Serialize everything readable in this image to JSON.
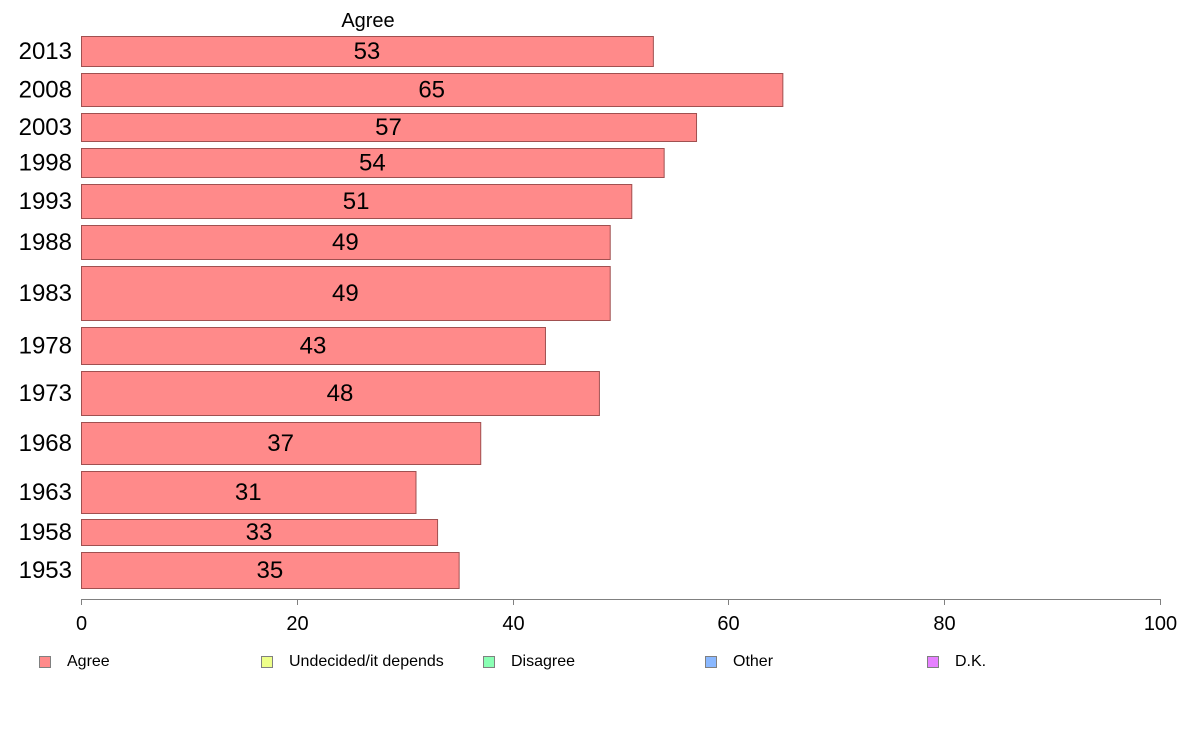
{
  "chart_data": {
    "type": "bar",
    "orientation": "horizontal",
    "title": "Agree",
    "categories": [
      "2013",
      "2008",
      "2003",
      "1998",
      "1993",
      "1988",
      "1983",
      "1978",
      "1973",
      "1968",
      "1963",
      "1958",
      "1953"
    ],
    "series": [
      {
        "name": "Agree",
        "values": [
          53,
          65,
          57,
          54,
          51,
          49,
          49,
          43,
          48,
          37,
          31,
          33,
          35
        ]
      }
    ],
    "data_labels": [
      "53",
      "65",
      "57",
      "54",
      "51",
      "49",
      "49",
      "43",
      "48",
      "37",
      "31",
      "33",
      "35"
    ],
    "xlim": [
      0,
      100
    ],
    "xticks": [
      0,
      20,
      40,
      60,
      80,
      100
    ],
    "xtick_labels": [
      "0",
      "20",
      "40",
      "60",
      "80",
      "100"
    ],
    "grid": false,
    "legend_position": "bottom",
    "legend": [
      {
        "name": "Agree",
        "color": "#ff8a8a"
      },
      {
        "name": "Undecided/it depends",
        "color": "#eeff8a"
      },
      {
        "name": "Disagree",
        "color": "#8affb4"
      },
      {
        "name": "Other",
        "color": "#8ab8ff"
      },
      {
        "name": "D.K.",
        "color": "#e680ff"
      }
    ],
    "bar_color": "#ff8a8a",
    "bar_border_color": "#a05050"
  }
}
